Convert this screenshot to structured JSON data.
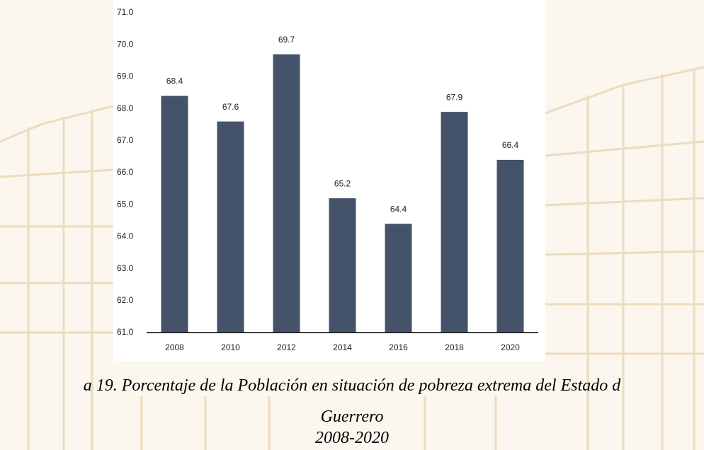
{
  "chart_data": {
    "type": "bar",
    "categories": [
      "2008",
      "2010",
      "2012",
      "2014",
      "2016",
      "2018",
      "2020"
    ],
    "values": [
      68.4,
      67.6,
      69.7,
      65.2,
      64.4,
      67.9,
      66.4
    ],
    "color": "#44526a",
    "ylim": [
      61,
      71
    ],
    "yticks": [
      {
        "value": 61,
        "label": "61.0"
      },
      {
        "value": 62,
        "label": "62.0"
      },
      {
        "value": 63,
        "label": "63.0"
      },
      {
        "value": 64,
        "label": "64.0"
      },
      {
        "value": 65,
        "label": "65.0"
      },
      {
        "value": 66,
        "label": "66.0"
      },
      {
        "value": 67,
        "label": "67.0"
      },
      {
        "value": 68,
        "label": "68.0"
      },
      {
        "value": 69,
        "label": "69.0"
      },
      {
        "value": 70,
        "label": "70.0"
      },
      {
        "value": 71,
        "label": "71.0"
      }
    ],
    "grid": false
  },
  "caption": [
    "a 19. Porcentaje de la Población en situación de pobreza extrema del Estado d",
    "Guerrero",
    "2008-2020"
  ]
}
